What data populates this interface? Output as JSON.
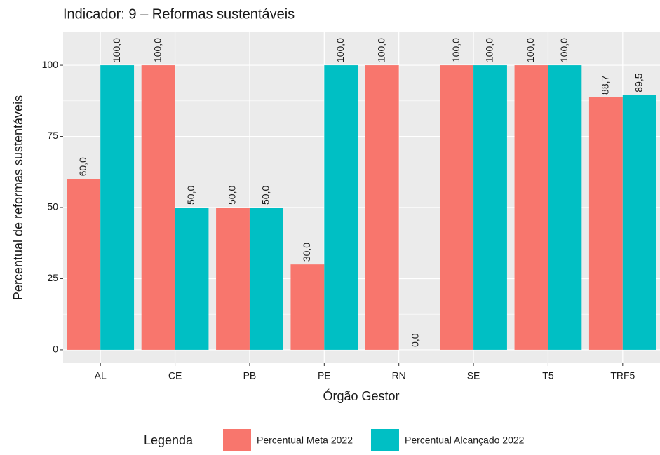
{
  "chart_data": {
    "type": "bar",
    "title": "Indicador: 9 –  Reformas sustentáveis",
    "x_label": "Órgão Gestor",
    "y_label": "Percentual de reformas sustentáveis",
    "legend_title": "Legenda",
    "legend_position": "bottom",
    "categories": [
      "AL",
      "CE",
      "PB",
      "PE",
      "RN",
      "SE",
      "T5",
      "TRF5"
    ],
    "series": [
      {
        "name": "Percentual Meta 2022",
        "color": "#F8766D",
        "values": [
          60,
          100,
          50,
          30,
          100,
          100,
          100,
          88.7
        ],
        "value_labels": [
          "60,0",
          "100,0",
          "50,0",
          "30,0",
          "100,0",
          "100,0",
          "100,0",
          "88,7"
        ]
      },
      {
        "name": "Percentual Alcançado 2022",
        "color": "#00BFC4",
        "values": [
          100,
          50,
          50,
          100,
          0,
          100,
          100,
          89.5
        ],
        "value_labels": [
          "100,0",
          "50,0",
          "50,0",
          "100,0",
          "0,0",
          "100,0",
          "100,0",
          "89,5"
        ]
      }
    ],
    "ylim": [
      -4.7,
      111.6
    ],
    "yticks": [
      0,
      25,
      50,
      75,
      100
    ],
    "grid": true
  }
}
